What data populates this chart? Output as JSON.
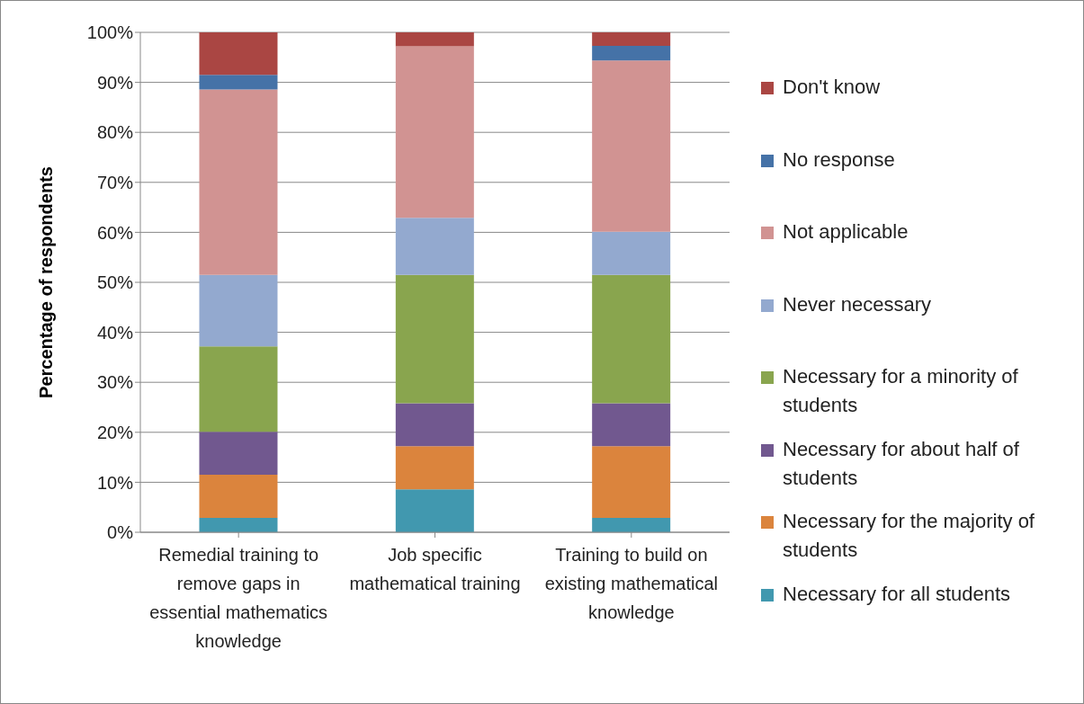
{
  "chart_data": {
    "type": "bar",
    "stacked": true,
    "ylabel": "Percentage of respondents",
    "categories": [
      "Remedial training to remove gaps in essential mathematics knowledge",
      "Job specific mathematical training",
      "Training to build on existing mathematical knowledge"
    ],
    "series": [
      {
        "name": "Necessary for all students",
        "color": "#4198af",
        "values": [
          2.9,
          8.6,
          2.9
        ]
      },
      {
        "name": "Necessary for the majority of students",
        "color": "#db843d",
        "values": [
          8.6,
          8.6,
          14.3
        ]
      },
      {
        "name": "Necessary for about half of students",
        "color": "#71588f",
        "values": [
          8.6,
          8.6,
          8.6
        ]
      },
      {
        "name": "Necessary for a minority of students",
        "color": "#89a54e",
        "values": [
          17.1,
          25.7,
          25.7
        ]
      },
      {
        "name": "Never necessary",
        "color": "#93a9cf",
        "values": [
          14.3,
          11.4,
          8.6
        ]
      },
      {
        "name": "Not applicable",
        "color": "#d19392",
        "values": [
          37.1,
          34.3,
          34.3
        ]
      },
      {
        "name": "No response",
        "color": "#4572a7",
        "values": [
          2.9,
          0,
          2.9
        ]
      },
      {
        "name": "Don't know",
        "color": "#aa4643",
        "values": [
          8.6,
          2.9,
          2.9
        ]
      }
    ],
    "ylim": [
      0,
      100
    ],
    "yticks": [
      {
        "value": 0,
        "label": "0%"
      },
      {
        "value": 10,
        "label": "10%"
      },
      {
        "value": 20,
        "label": "20%"
      },
      {
        "value": 30,
        "label": "30%"
      },
      {
        "value": 40,
        "label": "40%"
      },
      {
        "value": 50,
        "label": "50%"
      },
      {
        "value": 60,
        "label": "60%"
      },
      {
        "value": 70,
        "label": "70%"
      },
      {
        "value": 80,
        "label": "80%"
      },
      {
        "value": 90,
        "label": "90%"
      },
      {
        "value": 100,
        "label": "100%"
      }
    ],
    "grid": "y",
    "legend": "right"
  }
}
